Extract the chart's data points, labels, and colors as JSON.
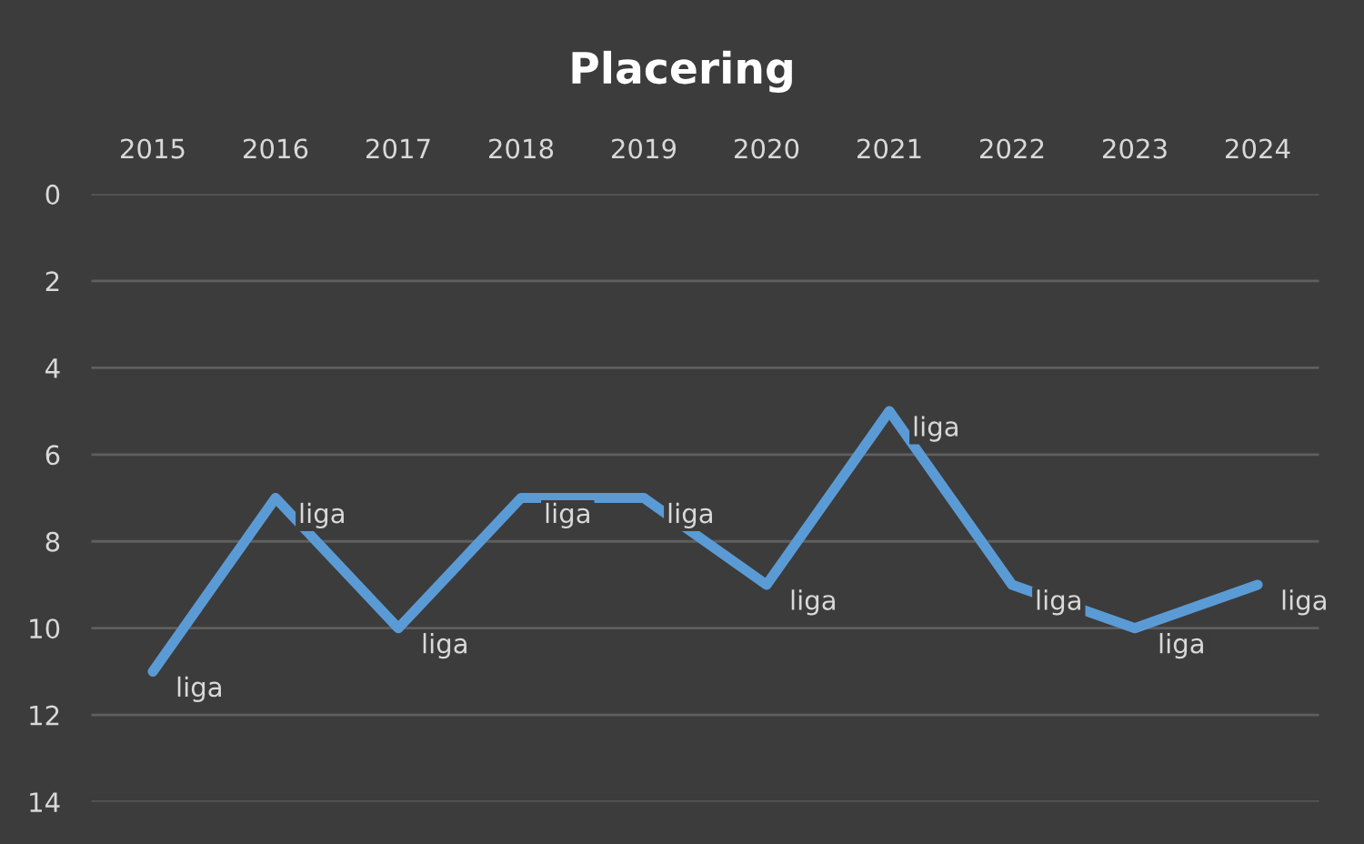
{
  "chart_data": {
    "type": "line",
    "title": "Placering",
    "categories": [
      "2015",
      "2016",
      "2017",
      "2018",
      "2019",
      "2020",
      "2021",
      "2022",
      "2023",
      "2024"
    ],
    "series": [
      {
        "color": "#5b9bd5",
        "values": [
          11,
          7,
          10,
          7,
          7,
          9,
          5,
          9,
          10,
          9
        ],
        "value_labels": [
          "liga",
          "liga",
          "liga",
          "liga",
          "liga",
          "liga",
          "liga",
          "liga",
          "liga",
          "liga"
        ]
      }
    ],
    "ylim": [
      14,
      0
    ],
    "yticks": [
      0,
      2,
      4,
      6,
      8,
      10,
      12,
      14
    ],
    "grid": "y",
    "legend": false,
    "marker": "none",
    "line_style": "solid"
  }
}
